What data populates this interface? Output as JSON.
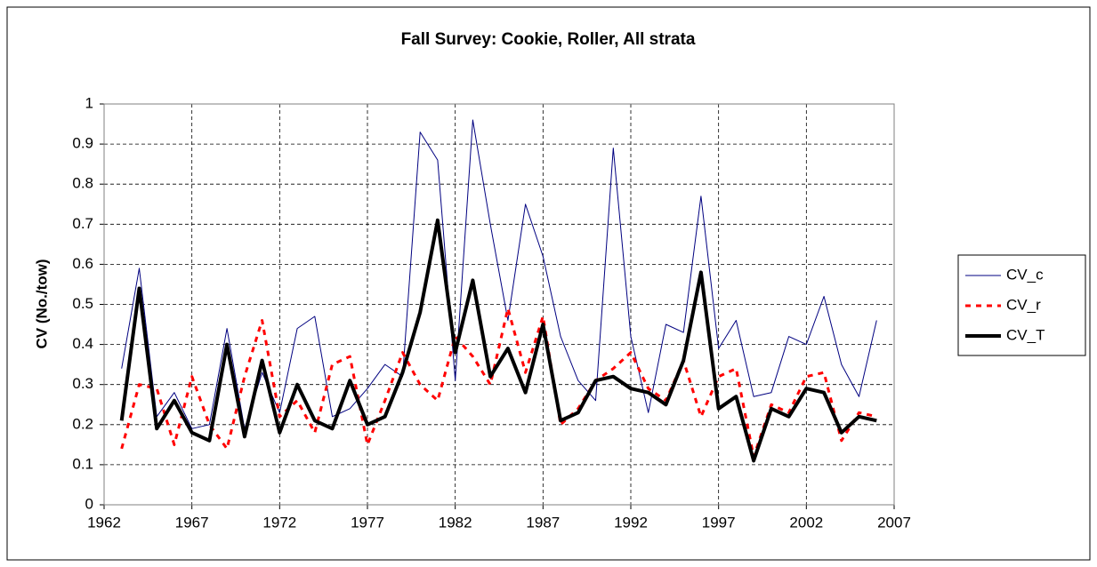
{
  "chart_data": {
    "type": "line",
    "title": "Fall Survey: Cookie, Roller, All strata",
    "y_label": "CV (No./tow)",
    "x": [
      1963,
      1964,
      1965,
      1966,
      1967,
      1968,
      1969,
      1970,
      1971,
      1972,
      1973,
      1974,
      1975,
      1976,
      1977,
      1978,
      1979,
      1980,
      1981,
      1982,
      1983,
      1984,
      1985,
      1986,
      1987,
      1988,
      1989,
      1990,
      1991,
      1992,
      1993,
      1994,
      1995,
      1996,
      1997,
      1998,
      1999,
      2000,
      2001,
      2002,
      2003,
      2004,
      2005,
      2006
    ],
    "series": [
      {
        "name": "CV_c",
        "color": "#000080",
        "width": 1,
        "dashed": false,
        "values": [
          0.34,
          0.59,
          0.22,
          0.28,
          0.19,
          0.2,
          0.44,
          0.19,
          0.33,
          0.23,
          0.44,
          0.47,
          0.22,
          0.24,
          0.29,
          0.35,
          0.32,
          0.93,
          0.86,
          0.31,
          0.96,
          0.7,
          0.46,
          0.75,
          0.62,
          0.42,
          0.31,
          0.26,
          0.89,
          0.42,
          0.23,
          0.45,
          0.43,
          0.77,
          0.39,
          0.46,
          0.27,
          0.28,
          0.42,
          0.4,
          0.52,
          0.35,
          0.27,
          0.46
        ]
      },
      {
        "name": "CV_r",
        "color": "#ff0000",
        "width": 3,
        "dashed": true,
        "values": [
          0.14,
          0.3,
          0.29,
          0.15,
          0.32,
          0.2,
          0.14,
          0.32,
          0.46,
          0.22,
          0.26,
          0.18,
          0.35,
          0.37,
          0.15,
          0.26,
          0.38,
          0.3,
          0.26,
          0.42,
          0.37,
          0.3,
          0.49,
          0.33,
          0.47,
          0.2,
          0.24,
          0.31,
          0.34,
          0.38,
          0.29,
          0.26,
          0.36,
          0.22,
          0.32,
          0.34,
          0.12,
          0.25,
          0.23,
          0.32,
          0.33,
          0.16,
          0.23,
          0.22
        ]
      },
      {
        "name": "CV_T",
        "color": "#000000",
        "width": 4,
        "dashed": false,
        "values": [
          0.21,
          0.54,
          0.19,
          0.26,
          0.18,
          0.16,
          0.4,
          0.17,
          0.36,
          0.18,
          0.3,
          0.21,
          0.19,
          0.31,
          0.2,
          0.22,
          0.33,
          0.48,
          0.71,
          0.38,
          0.56,
          0.32,
          0.39,
          0.28,
          0.45,
          0.21,
          0.23,
          0.31,
          0.32,
          0.29,
          0.28,
          0.25,
          0.36,
          0.58,
          0.24,
          0.27,
          0.11,
          0.24,
          0.22,
          0.29,
          0.28,
          0.18,
          0.22,
          0.21
        ]
      }
    ],
    "xlim": [
      1962,
      2007
    ],
    "xticks": [
      1962,
      1967,
      1972,
      1977,
      1982,
      1987,
      1992,
      1997,
      2002,
      2007
    ],
    "ylim": [
      0,
      1
    ],
    "yticks": [
      0,
      0.1,
      0.2,
      0.3,
      0.4,
      0.5,
      0.6,
      0.7,
      0.8,
      0.9,
      1
    ],
    "grid": true,
    "legend": "right"
  }
}
